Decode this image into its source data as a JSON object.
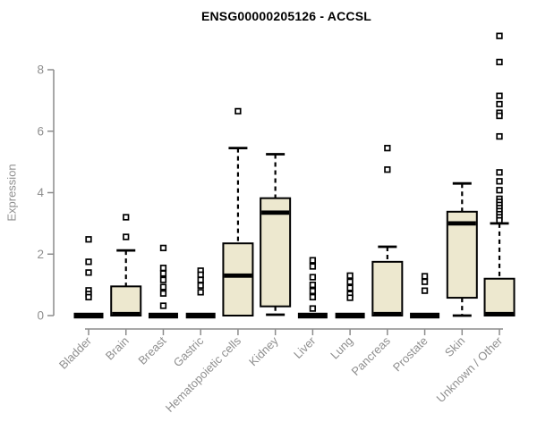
{
  "page": {
    "window_title": "ENSG00000205126 - ACCSL"
  },
  "chart_data": {
    "type": "boxplot",
    "title": "ENSG00000205126 - ACCSL",
    "xlabel": "",
    "ylabel": "Expression",
    "ylim": [
      0,
      9.2
    ],
    "yticks": [
      0,
      2,
      4,
      6,
      8
    ],
    "grid": false,
    "legend": false,
    "categories": [
      "Bladder",
      "Brain",
      "Breast",
      "Gastric",
      "Hematopoietic cells",
      "Kidney",
      "Liver",
      "Lung",
      "Pancreas",
      "Prostate",
      "Skin",
      "Unknown / Other"
    ],
    "boxes": [
      {
        "category": "Bladder",
        "whisker_low": 0,
        "q1": 0,
        "median": 0,
        "q3": 0,
        "whisker_high": 0,
        "outliers": [
          2.48,
          1.75,
          1.4,
          0.82,
          0.7,
          0.6
        ]
      },
      {
        "category": "Brain",
        "whisker_low": 0,
        "q1": 0,
        "median": 0.05,
        "q3": 0.95,
        "whisker_high": 2.12,
        "outliers": [
          3.2,
          2.56
        ]
      },
      {
        "category": "Breast",
        "whisker_low": 0,
        "q1": 0,
        "median": 0,
        "q3": 0,
        "whisker_high": 0,
        "outliers": [
          2.2,
          1.55,
          1.37,
          1.16,
          0.93,
          0.72,
          0.32
        ]
      },
      {
        "category": "Gastric",
        "whisker_low": 0,
        "q1": 0,
        "median": 0,
        "q3": 0,
        "whisker_high": 0,
        "outliers": [
          1.46,
          1.33,
          1.16,
          0.98,
          0.76
        ]
      },
      {
        "category": "Hematopoietic cells",
        "whisker_low": 0,
        "q1": 0,
        "median": 1.3,
        "q3": 2.35,
        "whisker_high": 5.45,
        "outliers": [
          6.65
        ]
      },
      {
        "category": "Kidney",
        "whisker_low": 0.03,
        "q1": 0.3,
        "median": 3.35,
        "q3": 3.82,
        "whisker_high": 5.25,
        "outliers": []
      },
      {
        "category": "Liver",
        "whisker_low": 0,
        "q1": 0,
        "median": 0,
        "q3": 0,
        "whisker_high": 0,
        "outliers": [
          1.8,
          1.6,
          1.25,
          1.0,
          0.8,
          0.6,
          0.23
        ]
      },
      {
        "category": "Lung",
        "whisker_low": 0,
        "q1": 0,
        "median": 0,
        "q3": 0,
        "whisker_high": 0,
        "outliers": [
          1.3,
          1.1,
          0.9,
          0.7,
          0.58
        ]
      },
      {
        "category": "Pancreas",
        "whisker_low": 0,
        "q1": 0,
        "median": 0.05,
        "q3": 1.75,
        "whisker_high": 2.24,
        "outliers": [
          5.45,
          4.75
        ]
      },
      {
        "category": "Prostate",
        "whisker_low": 0,
        "q1": 0,
        "median": 0,
        "q3": 0,
        "whisker_high": 0,
        "outliers": [
          1.28,
          1.1,
          0.81
        ]
      },
      {
        "category": "Skin",
        "whisker_low": 0,
        "q1": 0.58,
        "median": 3.0,
        "q3": 3.38,
        "whisker_high": 4.3,
        "outliers": []
      },
      {
        "category": "Unknown / Other",
        "whisker_low": 0,
        "q1": 0,
        "median": 0.05,
        "q3": 1.2,
        "whisker_high": 3.0,
        "outliers": [
          9.1,
          8.25,
          7.15,
          6.88,
          6.6,
          6.5,
          5.83,
          4.66,
          4.37,
          4.08,
          3.8,
          3.7,
          3.6,
          3.5,
          3.4,
          3.3,
          3.2,
          3.1
        ]
      }
    ]
  },
  "colors": {
    "box_fill": "#EDE8CF",
    "box_border": "#000000",
    "median": "#000000",
    "whisker": "#000000",
    "outlier_stroke": "#000000",
    "outlier_fill": "#FFFFFF",
    "axis": "#8C8C8C",
    "tick_label": "#8F8F8F",
    "title": "#000000",
    "background": "#FFFFFF"
  }
}
